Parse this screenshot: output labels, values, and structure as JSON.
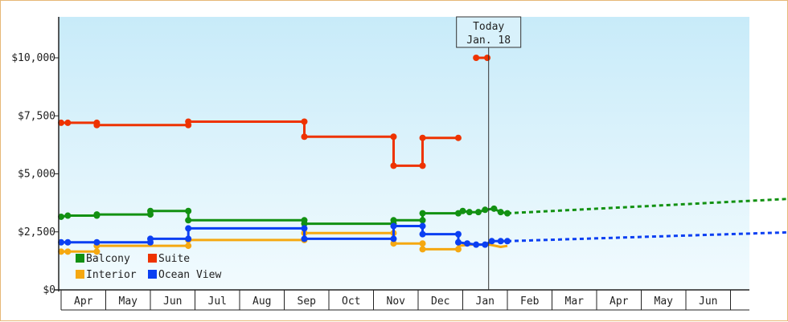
{
  "chart_data": {
    "type": "line",
    "title": "",
    "xlabel": "",
    "ylabel": "",
    "ylim": [
      0,
      11500
    ],
    "y_ticks": [
      {
        "value": 0,
        "label": "$0"
      },
      {
        "value": 2500,
        "label": "$2,500"
      },
      {
        "value": 5000,
        "label": "$5,000"
      },
      {
        "value": 7500,
        "label": "$7,500"
      },
      {
        "value": 10000,
        "label": "$10,000"
      }
    ],
    "x_months": [
      "Apr",
      "May",
      "Jun",
      "Jul",
      "Aug",
      "Sep",
      "Oct",
      "Nov",
      "Dec",
      "Jan",
      "Feb",
      "Mar",
      "Apr",
      "May",
      "Jun"
    ],
    "x_unit": "month index from start of Apr (0 = Apr 1, 9 = Jan 1)",
    "today": {
      "line1": "Today",
      "line2": "Jan. 18",
      "x": 9.58
    },
    "grid": false,
    "legend_placement": "bottom-left",
    "series": [
      {
        "name": "Balcony",
        "color": "#129112",
        "points": [
          [
            0,
            3150
          ],
          [
            0.15,
            3200
          ],
          [
            0.8,
            3200
          ],
          [
            0.8,
            3250
          ],
          [
            2.0,
            3250
          ],
          [
            2.0,
            3400
          ],
          [
            2.85,
            3400
          ],
          [
            2.85,
            3000
          ],
          [
            5.45,
            3000
          ],
          [
            5.45,
            2850
          ],
          [
            7.45,
            2850
          ],
          [
            7.45,
            3000
          ],
          [
            8.1,
            3000
          ],
          [
            8.1,
            3300
          ],
          [
            8.9,
            3300
          ],
          [
            9.0,
            3400
          ],
          [
            9.15,
            3350
          ],
          [
            9.35,
            3350
          ],
          [
            9.5,
            3450
          ],
          [
            9.7,
            3500
          ],
          [
            9.85,
            3350
          ],
          [
            10.0,
            3300
          ]
        ],
        "markers": [
          [
            0,
            3150
          ],
          [
            0.15,
            3200
          ],
          [
            0.8,
            3200
          ],
          [
            0.8,
            3250
          ],
          [
            2.0,
            3250
          ],
          [
            2.0,
            3400
          ],
          [
            2.85,
            3400
          ],
          [
            2.85,
            3000
          ],
          [
            5.45,
            3000
          ],
          [
            5.45,
            2850
          ],
          [
            7.45,
            2850
          ],
          [
            7.45,
            3000
          ],
          [
            8.1,
            3000
          ],
          [
            8.1,
            3300
          ],
          [
            8.9,
            3300
          ],
          [
            9.0,
            3400
          ],
          [
            9.15,
            3350
          ],
          [
            9.35,
            3350
          ],
          [
            9.5,
            3450
          ],
          [
            9.7,
            3500
          ],
          [
            9.85,
            3350
          ],
          [
            10.0,
            3300
          ]
        ],
        "forecast": [
          [
            10.0,
            3300
          ],
          [
            16.6,
            3950
          ]
        ]
      },
      {
        "name": "Suite",
        "color": "#ee3300",
        "points": [
          [
            0,
            7200
          ],
          [
            0.15,
            7200
          ],
          [
            0.8,
            7200
          ],
          [
            0.8,
            7100
          ],
          [
            2.85,
            7100
          ],
          [
            2.85,
            7250
          ],
          [
            5.45,
            7250
          ],
          [
            5.45,
            6600
          ],
          [
            7.45,
            6600
          ],
          [
            7.45,
            5350
          ],
          [
            8.1,
            5350
          ],
          [
            8.1,
            6550
          ],
          [
            8.9,
            6550
          ]
        ],
        "markers": [
          [
            0,
            7200
          ],
          [
            0.15,
            7200
          ],
          [
            0.8,
            7200
          ],
          [
            0.8,
            7100
          ],
          [
            2.85,
            7100
          ],
          [
            2.85,
            7250
          ],
          [
            5.45,
            7250
          ],
          [
            5.45,
            6600
          ],
          [
            7.45,
            6600
          ],
          [
            7.45,
            5350
          ],
          [
            8.1,
            5350
          ],
          [
            8.1,
            6550
          ],
          [
            8.9,
            6550
          ]
        ],
        "extra_segment": [
          [
            9.3,
            10000
          ],
          [
            9.55,
            10000
          ]
        ]
      },
      {
        "name": "Interior",
        "color": "#f5a811",
        "points": [
          [
            0,
            1650
          ],
          [
            0.15,
            1650
          ],
          [
            0.8,
            1650
          ],
          [
            0.8,
            1900
          ],
          [
            2.85,
            1900
          ],
          [
            2.85,
            2150
          ],
          [
            5.45,
            2150
          ],
          [
            5.45,
            2450
          ],
          [
            7.45,
            2450
          ],
          [
            7.45,
            2000
          ],
          [
            8.1,
            2000
          ],
          [
            8.1,
            1750
          ],
          [
            8.9,
            1750
          ],
          [
            8.9,
            1900
          ],
          [
            9.2,
            1950
          ],
          [
            9.6,
            1950
          ],
          [
            9.85,
            1850
          ],
          [
            10.0,
            1900
          ]
        ],
        "markers": [
          [
            0,
            1650
          ],
          [
            0.15,
            1650
          ],
          [
            0.8,
            1650
          ],
          [
            0.8,
            1900
          ],
          [
            2.85,
            1900
          ],
          [
            2.85,
            2150
          ],
          [
            5.45,
            2150
          ],
          [
            5.45,
            2450
          ],
          [
            7.45,
            2450
          ],
          [
            7.45,
            2000
          ],
          [
            8.1,
            2000
          ],
          [
            8.1,
            1750
          ],
          [
            8.9,
            1750
          ]
        ]
      },
      {
        "name": "Ocean View",
        "color": "#0b3ff2",
        "points": [
          [
            0,
            2050
          ],
          [
            0.15,
            2050
          ],
          [
            0.8,
            2050
          ],
          [
            2.0,
            2050
          ],
          [
            2.0,
            2200
          ],
          [
            2.85,
            2200
          ],
          [
            2.85,
            2650
          ],
          [
            5.45,
            2650
          ],
          [
            5.45,
            2200
          ],
          [
            7.45,
            2200
          ],
          [
            7.45,
            2750
          ],
          [
            8.1,
            2750
          ],
          [
            8.1,
            2400
          ],
          [
            8.9,
            2400
          ],
          [
            8.9,
            2050
          ],
          [
            9.1,
            2000
          ],
          [
            9.3,
            1950
          ],
          [
            9.5,
            1950
          ],
          [
            9.65,
            2100
          ],
          [
            9.85,
            2100
          ],
          [
            10.0,
            2100
          ]
        ],
        "markers": [
          [
            0,
            2050
          ],
          [
            0.15,
            2050
          ],
          [
            0.8,
            2050
          ],
          [
            2.0,
            2050
          ],
          [
            2.0,
            2200
          ],
          [
            2.85,
            2200
          ],
          [
            2.85,
            2650
          ],
          [
            5.45,
            2650
          ],
          [
            5.45,
            2200
          ],
          [
            7.45,
            2200
          ],
          [
            7.45,
            2750
          ],
          [
            8.1,
            2750
          ],
          [
            8.1,
            2400
          ],
          [
            8.9,
            2400
          ],
          [
            8.9,
            2050
          ],
          [
            9.1,
            2000
          ],
          [
            9.3,
            1950
          ],
          [
            9.5,
            1950
          ],
          [
            9.65,
            2100
          ],
          [
            9.85,
            2100
          ],
          [
            10.0,
            2100
          ]
        ],
        "forecast": [
          [
            10.0,
            2100
          ],
          [
            16.6,
            2500
          ]
        ]
      }
    ],
    "legend": [
      {
        "name": "Balcony",
        "color": "#129112"
      },
      {
        "name": "Suite",
        "color": "#ee3300"
      },
      {
        "name": "Interior",
        "color": "#f5a811"
      },
      {
        "name": "Ocean View",
        "color": "#0b3ff2"
      }
    ]
  }
}
